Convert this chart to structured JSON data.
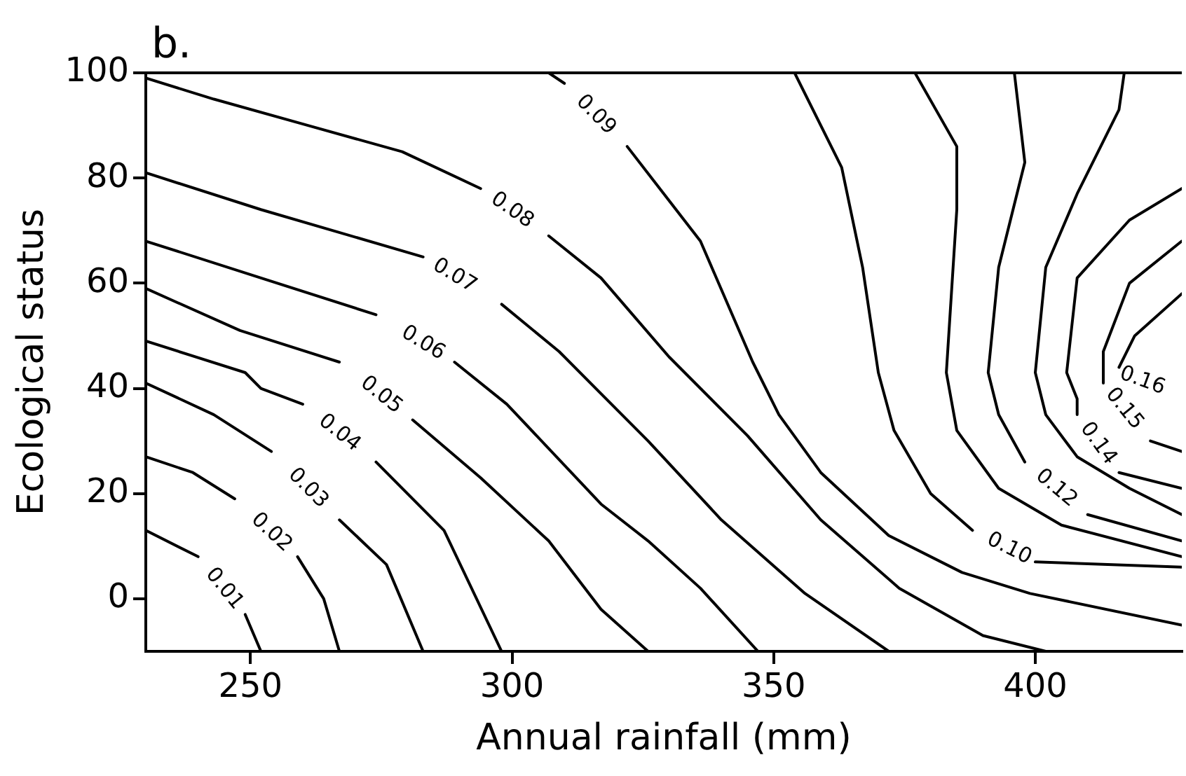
{
  "chart_data": {
    "type": "line",
    "title": "b.",
    "xlabel": "Annual rainfall (mm)",
    "ylabel": "Ecological status",
    "xlim": [
      230,
      428
    ],
    "ylim": [
      -10,
      100
    ],
    "xticks": [
      250,
      300,
      350,
      400
    ],
    "yticks": [
      0,
      20,
      40,
      60,
      80,
      100
    ],
    "grid": false,
    "marker": "none",
    "line_style": "solid",
    "series": [
      {
        "name": "0.01",
        "color": "#000000",
        "x": [
          230,
          240,
          245,
          249,
          252
        ],
        "values": [
          13,
          8,
          null,
          -3,
          -10
        ]
      },
      {
        "name": "0.02",
        "color": "#000000",
        "x": [
          230,
          239,
          247,
          254,
          259,
          264,
          267
        ],
        "values": [
          27,
          24,
          19,
          null,
          8,
          0,
          -10
        ]
      },
      {
        "name": "0.03",
        "color": "#000000",
        "x": [
          230,
          243,
          254,
          261,
          267,
          276,
          283
        ],
        "values": [
          41,
          35,
          28,
          null,
          15,
          6.5,
          -10
        ]
      },
      {
        "name": "0.04",
        "color": "#000000",
        "x": [
          230,
          249,
          252,
          260,
          267,
          274,
          287,
          298
        ],
        "values": [
          49,
          43,
          40,
          37,
          null,
          26,
          13,
          -10
        ]
      },
      {
        "name": "0.05",
        "color": "#000000",
        "x": [
          230,
          248,
          267,
          275,
          281,
          294,
          307,
          317,
          326
        ],
        "values": [
          59,
          51,
          45,
          null,
          34,
          23,
          11,
          -2,
          -10
        ]
      },
      {
        "name": "0.06",
        "color": "#000000",
        "x": [
          230,
          252,
          274,
          283,
          289,
          299,
          317,
          326,
          336,
          347
        ],
        "values": [
          68,
          61,
          54,
          null,
          45,
          37,
          18,
          11,
          2,
          -10
        ]
      },
      {
        "name": "0.07",
        "color": "#000000",
        "x": [
          230,
          252,
          283,
          289,
          298,
          309,
          317,
          326,
          340,
          356,
          372
        ],
        "values": [
          81,
          74,
          65,
          null,
          56,
          47,
          39,
          30,
          15,
          1,
          -10
        ]
      },
      {
        "name": "0.08",
        "color": "#000000",
        "x": [
          230,
          243,
          261,
          279,
          294,
          300,
          307,
          317,
          330,
          345,
          359,
          374,
          390,
          402
        ],
        "values": [
          99,
          95,
          90,
          85,
          78,
          null,
          69,
          61,
          46,
          31,
          15,
          2,
          -7,
          -10
        ]
      },
      {
        "name": "0.09",
        "color": "#000000",
        "x": [
          307,
          310,
          316,
          322,
          336,
          346,
          351,
          359,
          372,
          386,
          399,
          428
        ],
        "values": [
          100,
          98,
          null,
          86,
          68,
          45,
          35,
          24,
          12,
          5,
          1,
          -5
        ]
      },
      {
        "name": "0.10",
        "color": "#000000",
        "x": [
          354,
          363,
          367,
          370,
          373,
          380,
          388,
          395,
          400,
          428
        ],
        "values": [
          100,
          82,
          63,
          43,
          32,
          20,
          13,
          null,
          7,
          6
        ]
      },
      {
        "color": "#000000",
        "x": [
          377,
          385,
          385,
          383,
          385,
          393,
          405,
          428
        ],
        "values": [
          100,
          86,
          74,
          43,
          32,
          21,
          14,
          8
        ]
      },
      {
        "name": "0.12",
        "color": "#000000",
        "x": [
          396,
          398,
          393,
          391,
          393,
          398,
          404,
          410,
          428
        ],
        "values": [
          100,
          83,
          63,
          43,
          35,
          26,
          null,
          16,
          11
        ]
      },
      {
        "color": "#000000",
        "x": [
          417,
          416,
          408,
          402,
          400,
          402,
          408,
          418,
          428
        ],
        "values": [
          100,
          93,
          77,
          63,
          43,
          35,
          27,
          21,
          16
        ]
      },
      {
        "name": "0.14",
        "color": "#000000",
        "x": [
          428,
          418,
          408,
          406,
          408,
          408,
          412,
          416,
          428
        ],
        "values": [
          78,
          72,
          61,
          43,
          38,
          35,
          null,
          24,
          21
        ]
      },
      {
        "name": "0.15",
        "color": "#000000",
        "x": [
          428,
          418,
          413,
          413,
          417,
          422,
          428
        ],
        "values": [
          68,
          60,
          47,
          41,
          null,
          30,
          28
        ]
      },
      {
        "name": "0.16",
        "color": "#000000",
        "x": [
          428,
          419,
          416
        ],
        "values": [
          58,
          50,
          44
        ]
      }
    ]
  }
}
